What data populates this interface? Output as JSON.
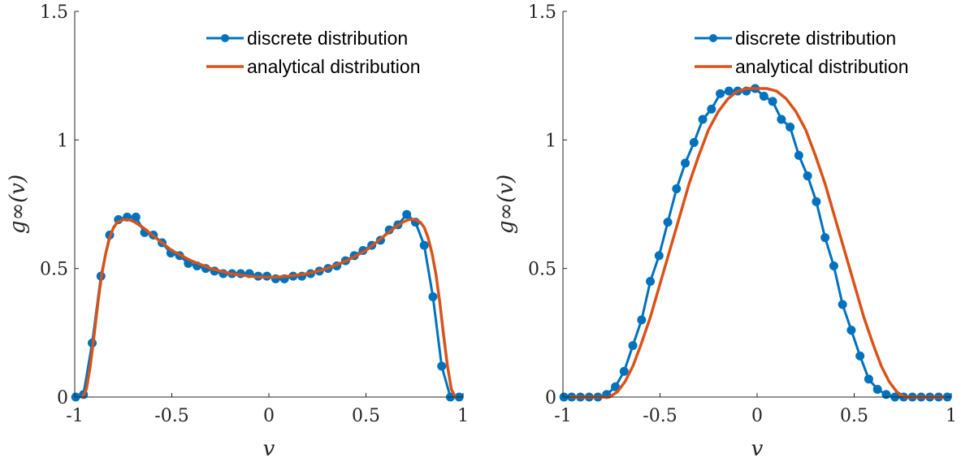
{
  "colors": {
    "discrete": "#0072BD",
    "analytical": "#D95319",
    "axis": "#262626"
  },
  "chart_data": [
    {
      "type": "line",
      "xlabel": "v",
      "ylabel": "g∞(v)",
      "xlim": [
        -1,
        1
      ],
      "ylim": [
        0,
        1.5
      ],
      "xticks": [
        -1,
        -0.5,
        0,
        0.5,
        1
      ],
      "xtick_labels": [
        "-1",
        "-0.5",
        "0",
        "0.5",
        "1"
      ],
      "yticks": [
        0,
        0.5,
        1,
        1.5
      ],
      "ytick_labels": [
        "0",
        "0.5",
        "1",
        "1.5"
      ],
      "legend_position": "top-right",
      "grid": false,
      "series": [
        {
          "name": "discrete distribution",
          "marker": "circle",
          "x": [
            -0.995,
            -0.955,
            -0.91,
            -0.865,
            -0.82,
            -0.775,
            -0.73,
            -0.685,
            -0.64,
            -0.595,
            -0.55,
            -0.505,
            -0.46,
            -0.415,
            -0.37,
            -0.325,
            -0.28,
            -0.235,
            -0.19,
            -0.145,
            -0.1,
            -0.055,
            -0.01,
            0.035,
            0.08,
            0.125,
            0.17,
            0.215,
            0.26,
            0.305,
            0.35,
            0.395,
            0.44,
            0.485,
            0.53,
            0.575,
            0.62,
            0.665,
            0.71,
            0.755,
            0.8,
            0.845,
            0.89,
            0.935,
            0.98
          ],
          "y": [
            0.0,
            0.01,
            0.21,
            0.47,
            0.63,
            0.69,
            0.7,
            0.7,
            0.64,
            0.63,
            0.6,
            0.56,
            0.55,
            0.52,
            0.51,
            0.5,
            0.49,
            0.48,
            0.48,
            0.48,
            0.48,
            0.47,
            0.47,
            0.46,
            0.46,
            0.47,
            0.47,
            0.48,
            0.49,
            0.5,
            0.51,
            0.53,
            0.55,
            0.57,
            0.59,
            0.61,
            0.65,
            0.67,
            0.71,
            0.68,
            0.59,
            0.39,
            0.12,
            0.0,
            0.0
          ]
        },
        {
          "name": "analytical distribution",
          "x": [
            -0.96,
            -0.94,
            -0.92,
            -0.9,
            -0.88,
            -0.86,
            -0.84,
            -0.82,
            -0.8,
            -0.78,
            -0.75,
            -0.72,
            -0.69,
            -0.65,
            -0.6,
            -0.55,
            -0.5,
            -0.45,
            -0.4,
            -0.35,
            -0.3,
            -0.25,
            -0.2,
            -0.15,
            -0.1,
            -0.05,
            0.0,
            0.05,
            0.1,
            0.15,
            0.2,
            0.25,
            0.3,
            0.35,
            0.4,
            0.45,
            0.5,
            0.55,
            0.6,
            0.65,
            0.69,
            0.72,
            0.75,
            0.78,
            0.8,
            0.82,
            0.84,
            0.86,
            0.88,
            0.9,
            0.92,
            0.94,
            0.96
          ],
          "y": [
            0.0,
            0.03,
            0.12,
            0.24,
            0.37,
            0.48,
            0.56,
            0.62,
            0.66,
            0.68,
            0.69,
            0.69,
            0.68,
            0.66,
            0.63,
            0.6,
            0.57,
            0.55,
            0.53,
            0.515,
            0.5,
            0.49,
            0.48,
            0.475,
            0.47,
            0.467,
            0.466,
            0.467,
            0.47,
            0.475,
            0.48,
            0.49,
            0.5,
            0.515,
            0.53,
            0.55,
            0.57,
            0.6,
            0.63,
            0.66,
            0.68,
            0.69,
            0.69,
            0.68,
            0.66,
            0.62,
            0.56,
            0.48,
            0.37,
            0.24,
            0.12,
            0.03,
            0.0
          ]
        }
      ]
    },
    {
      "type": "line",
      "xlabel": "v",
      "ylabel": "g∞(v)",
      "xlim": [
        -1,
        1
      ],
      "ylim": [
        0,
        1.5
      ],
      "xticks": [
        -1,
        -0.5,
        0,
        0.5,
        1
      ],
      "xtick_labels": [
        "-1",
        "-0.5",
        "0",
        "0.5",
        "1"
      ],
      "yticks": [
        0,
        0.5,
        1,
        1.5
      ],
      "ytick_labels": [
        "0",
        "0.5",
        "1",
        "1.5"
      ],
      "legend_position": "top-right",
      "grid": false,
      "series": [
        {
          "name": "discrete distribution",
          "marker": "circle",
          "x": [
            -0.995,
            -0.955,
            -0.91,
            -0.865,
            -0.82,
            -0.775,
            -0.73,
            -0.685,
            -0.64,
            -0.595,
            -0.55,
            -0.505,
            -0.46,
            -0.415,
            -0.37,
            -0.325,
            -0.28,
            -0.235,
            -0.19,
            -0.145,
            -0.1,
            -0.055,
            -0.01,
            0.035,
            0.08,
            0.125,
            0.17,
            0.215,
            0.26,
            0.305,
            0.35,
            0.395,
            0.44,
            0.485,
            0.53,
            0.575,
            0.62,
            0.665,
            0.71,
            0.755,
            0.8,
            0.845,
            0.89,
            0.935,
            0.98
          ],
          "y": [
            0.0,
            0.0,
            0.0,
            0.0,
            0.0,
            0.01,
            0.04,
            0.1,
            0.2,
            0.3,
            0.45,
            0.55,
            0.68,
            0.81,
            0.91,
            0.99,
            1.08,
            1.12,
            1.18,
            1.19,
            1.19,
            1.19,
            1.2,
            1.17,
            1.15,
            1.08,
            1.05,
            0.94,
            0.86,
            0.76,
            0.62,
            0.51,
            0.36,
            0.26,
            0.16,
            0.07,
            0.03,
            0.01,
            0.0,
            0.0,
            0.0,
            0.0,
            0.0,
            0.0,
            0.0
          ]
        },
        {
          "name": "analytical distribution",
          "x": [
            -0.96,
            -0.9,
            -0.84,
            -0.8,
            -0.76,
            -0.72,
            -0.68,
            -0.64,
            -0.6,
            -0.55,
            -0.5,
            -0.45,
            -0.4,
            -0.35,
            -0.3,
            -0.25,
            -0.2,
            -0.15,
            -0.1,
            -0.05,
            0.0,
            0.05,
            0.1,
            0.15,
            0.2,
            0.25,
            0.3,
            0.35,
            0.4,
            0.45,
            0.5,
            0.55,
            0.6,
            0.64,
            0.68,
            0.72,
            0.76,
            0.8,
            0.84,
            0.9,
            0.96
          ],
          "y": [
            0.0,
            0.0,
            0.0,
            0.0,
            0.0,
            0.02,
            0.06,
            0.12,
            0.2,
            0.31,
            0.44,
            0.57,
            0.7,
            0.83,
            0.94,
            1.04,
            1.11,
            1.16,
            1.19,
            1.2,
            1.2,
            1.2,
            1.19,
            1.16,
            1.11,
            1.04,
            0.94,
            0.83,
            0.7,
            0.57,
            0.44,
            0.31,
            0.2,
            0.12,
            0.06,
            0.02,
            0.0,
            0.0,
            0.0,
            0.0,
            0.0
          ]
        }
      ]
    }
  ]
}
